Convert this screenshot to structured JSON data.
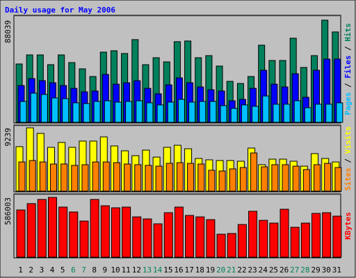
{
  "chart_data": [
    {
      "type": "bar",
      "title": "Daily usage for May 2006",
      "categories": [
        "1",
        "2",
        "3",
        "4",
        "5",
        "6",
        "7",
        "8",
        "9",
        "10",
        "11",
        "12",
        "13",
        "14",
        "15",
        "16",
        "17",
        "18",
        "19",
        "20",
        "21",
        "22",
        "23",
        "24",
        "25",
        "26",
        "27",
        "28",
        "29",
        "30",
        "31"
      ],
      "category_colors": [
        "#000000",
        "#000000",
        "#000000",
        "#000000",
        "#000000",
        "#00805c",
        "#00805c",
        "#000000",
        "#000000",
        "#000000",
        "#000000",
        "#000000",
        "#00805c",
        "#00805c",
        "#000000",
        "#000000",
        "#000000",
        "#000000",
        "#000000",
        "#00805c",
        "#00805c",
        "#000000",
        "#000000",
        "#000000",
        "#000000",
        "#000000",
        "#00805c",
        "#00805c",
        "#000000",
        "#000000",
        "#000000"
      ],
      "legend_separator": "/",
      "ylim": [
        0,
        88039
      ],
      "yticks": [
        88039
      ],
      "series": [
        {
          "name": "Hits",
          "color": "#00805c",
          "values": [
            50300,
            58100,
            58100,
            49700,
            58100,
            51500,
            46100,
            39500,
            60500,
            61700,
            59300,
            71300,
            49700,
            55700,
            52100,
            69500,
            70100,
            55700,
            57500,
            48500,
            35300,
            33500,
            39500,
            66500,
            53300,
            53300,
            72500,
            47300,
            57500,
            88039,
            77900
          ]
        },
        {
          "name": "Files",
          "color": "#0000ff",
          "values": [
            31700,
            37700,
            35900,
            34100,
            31700,
            29300,
            26300,
            27000,
            41300,
            32900,
            34100,
            35900,
            29300,
            24600,
            32300,
            38300,
            34100,
            30500,
            28100,
            27000,
            18600,
            19800,
            29300,
            44900,
            32900,
            30500,
            41900,
            21600,
            44900,
            54500,
            54500
          ]
        },
        {
          "name": "Pages",
          "color": "#00c0ff",
          "values": [
            18000,
            25100,
            24000,
            21000,
            20400,
            16800,
            16200,
            18000,
            18600,
            17400,
            18000,
            18600,
            16800,
            15000,
            17400,
            19800,
            17400,
            18000,
            18000,
            14400,
            12000,
            15000,
            13800,
            22700,
            15600,
            15600,
            18600,
            12600,
            15600,
            15600,
            16800
          ]
        }
      ]
    },
    {
      "type": "bar",
      "ylim": [
        0,
        9239
      ],
      "yticks": [
        9239
      ],
      "series": [
        {
          "name": "Visits",
          "color": "#ffff00",
          "values": [
            6500,
            9239,
            8430,
            6400,
            7110,
            6400,
            7310,
            7310,
            7920,
            6600,
            5890,
            5180,
            5990,
            4970,
            6400,
            6700,
            6190,
            4770,
            4570,
            4470,
            4470,
            4370,
            6290,
            3860,
            4670,
            4670,
            4370,
            3650,
            5480,
            4770,
            4260
          ]
        },
        {
          "name": "Sites",
          "color": "#ff8000",
          "values": [
            4260,
            4470,
            4260,
            3960,
            3960,
            3760,
            3860,
            4260,
            4260,
            4160,
            3960,
            3860,
            3760,
            3650,
            4060,
            4160,
            4060,
            3960,
            3050,
            2940,
            3250,
            3450,
            5580,
            3550,
            3860,
            3860,
            3650,
            3150,
            3860,
            4060,
            3450
          ]
        }
      ]
    },
    {
      "type": "bar",
      "ylim": [
        0,
        586003
      ],
      "yticks": [
        586003
      ],
      "series": [
        {
          "name": "KBytes",
          "color": "#ff0000",
          "values": [
            463000,
            525000,
            566000,
            586003,
            491000,
            443000,
            354000,
            566000,
            504000,
            484000,
            491000,
            395000,
            375000,
            327000,
            436000,
            491000,
            409000,
            395000,
            368000,
            225000,
            232000,
            320000,
            450000,
            361000,
            334000,
            470000,
            293000,
            334000,
            429000,
            436000,
            402000
          ]
        }
      ]
    }
  ]
}
